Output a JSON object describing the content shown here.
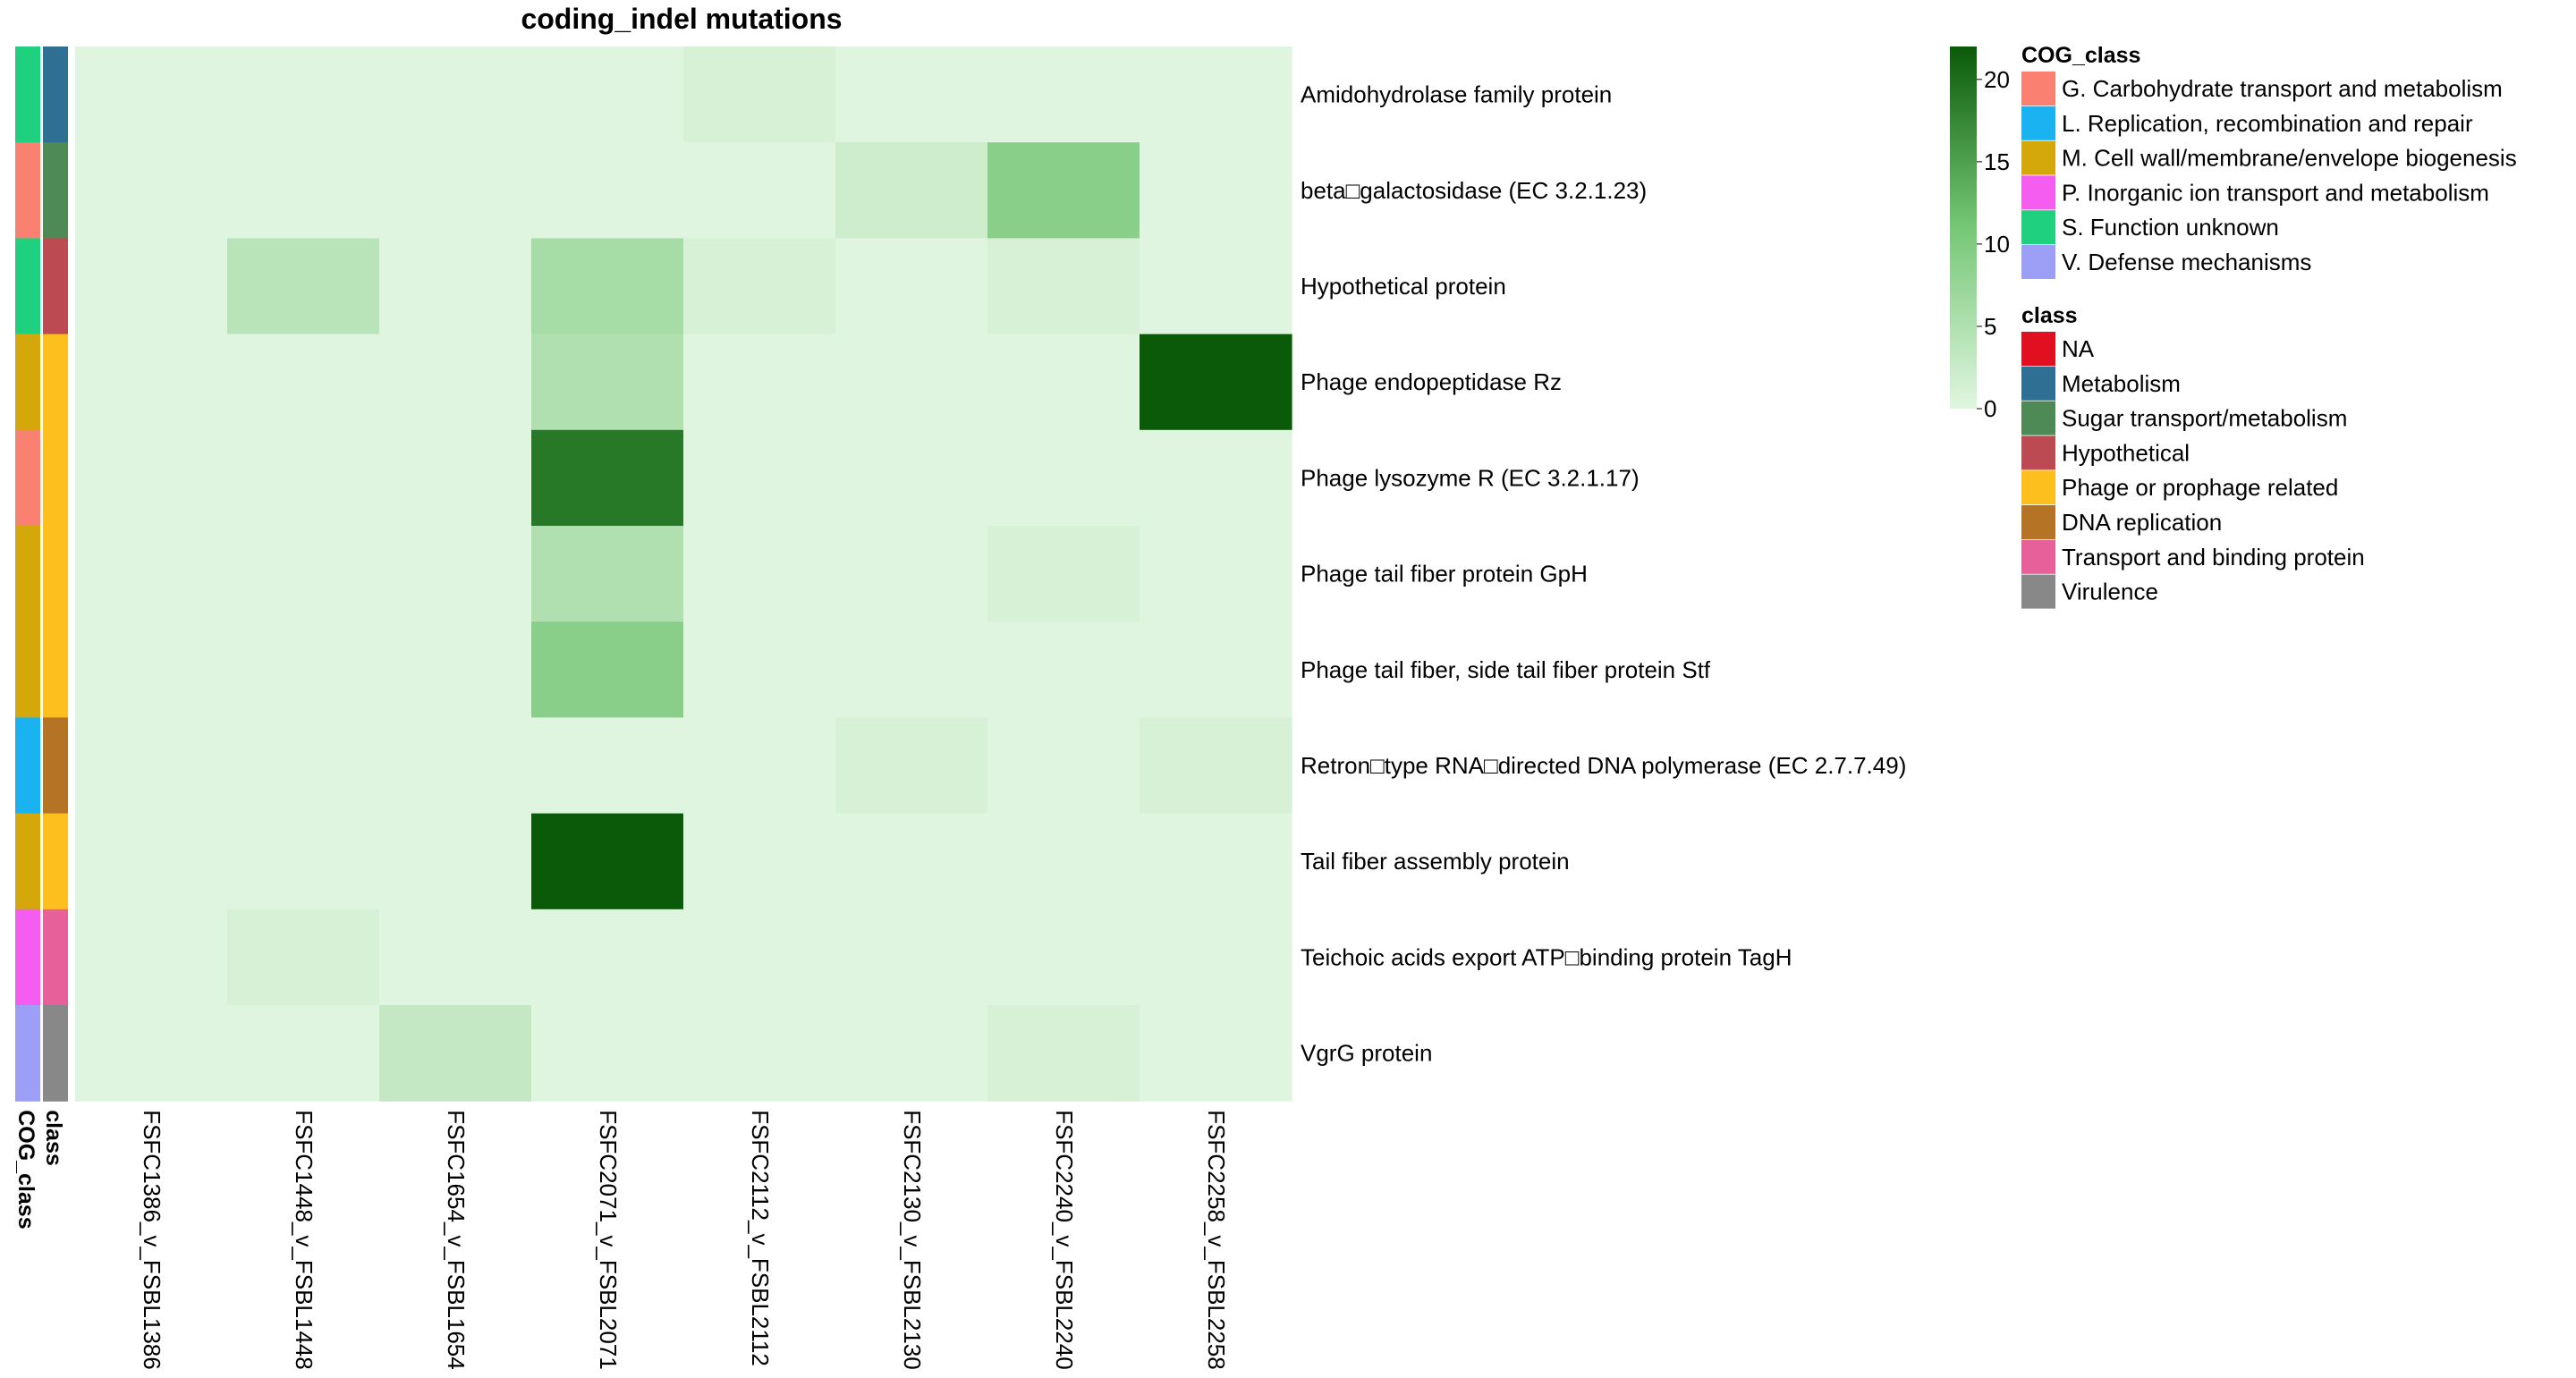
{
  "chart_data": {
    "type": "heatmap",
    "title": "coding_indel mutations",
    "columns": [
      "FSFC1386_v_FSBL1386",
      "FSFC1448_v_FSBL1448",
      "FSFC1654_v_FSBL1654",
      "FSFC2071_v_FSBL2071",
      "FSFC2112_v_FSBL2112",
      "FSFC2130_v_FSBL2130",
      "FSFC2240_v_FSBL2240",
      "FSFC2258_v_FSBL2258"
    ],
    "rows": [
      "Amidohydrolase family protein",
      "beta□galactosidase (EC 3.2.1.23)",
      "Hypothetical protein",
      "Phage endopeptidase Rz",
      "Phage lysozyme R (EC 3.2.1.17)",
      "Phage tail fiber protein GpH",
      "Phage tail fiber, side tail fiber protein Stf",
      "Retron□type RNA□directed DNA polymerase (EC 2.7.7.49)",
      "Tail fiber assembly protein",
      "Teichoic acids export ATP□binding protein TagH",
      "VgrG protein"
    ],
    "values": [
      [
        0,
        0,
        0,
        0,
        1,
        0,
        0,
        0
      ],
      [
        0,
        0,
        0,
        0,
        0,
        2,
        9,
        0
      ],
      [
        0,
        4,
        0,
        6,
        1,
        0,
        1,
        0
      ],
      [
        0,
        0,
        0,
        5,
        0,
        0,
        0,
        22
      ],
      [
        0,
        0,
        0,
        19,
        0,
        0,
        0,
        0
      ],
      [
        0,
        0,
        0,
        5,
        0,
        0,
        1,
        0
      ],
      [
        0,
        0,
        0,
        9,
        0,
        0,
        0,
        0
      ],
      [
        0,
        0,
        0,
        0,
        0,
        1,
        0,
        1
      ],
      [
        0,
        0,
        0,
        22,
        0,
        0,
        0,
        0
      ],
      [
        0,
        1,
        0,
        0,
        0,
        0,
        0,
        0
      ],
      [
        0,
        0,
        3,
        0,
        0,
        0,
        1,
        0
      ]
    ],
    "row_annotations": {
      "COG_class": [
        "S",
        "G",
        "S",
        "M",
        "G",
        "M",
        "M",
        "L",
        "M",
        "P",
        "V"
      ],
      "class": [
        "Metabolism",
        "Sugar transport/metabolism",
        "Hypothetical",
        "Phage or prophage related",
        "Phage or prophage related",
        "Phage or prophage related",
        "Phage or prophage related",
        "DNA replication",
        "Phage or prophage related",
        "Transport and binding protein",
        "Virulence"
      ]
    },
    "annotation_labels": [
      "COG_class",
      "class"
    ],
    "color_scale": {
      "min": 0,
      "max": 22,
      "low_color": "#e0f5e0",
      "mid_color": "#76c776",
      "high_color": "#0a5a0a",
      "ticks": [
        0,
        5,
        10,
        15,
        20
      ]
    },
    "legends": {
      "cog_title": "COG_class",
      "cog_items": [
        {
          "key": "G",
          "label": "G. Carbohydrate transport and metabolism",
          "color": "#fa8072"
        },
        {
          "key": "L",
          "label": "L. Replication, recombination and repair",
          "color": "#1ab2f0"
        },
        {
          "key": "M",
          "label": "M. Cell wall/membrane/envelope biogenesis",
          "color": "#d4a80a"
        },
        {
          "key": "P",
          "label": "P. Inorganic ion transport and metabolism",
          "color": "#f55cf0"
        },
        {
          "key": "S",
          "label": "S. Function unknown",
          "color": "#1fd07e"
        },
        {
          "key": "V",
          "label": "V. Defense mechanisms",
          "color": "#9d9ef5"
        }
      ],
      "class_title": "class",
      "class_items": [
        {
          "label": "NA",
          "color": "#e01020"
        },
        {
          "label": "Metabolism",
          "color": "#2f6f94"
        },
        {
          "label": "Sugar transport/metabolism",
          "color": "#4e8a55"
        },
        {
          "label": "Hypothetical",
          "color": "#bb4a52"
        },
        {
          "label": "Phage or prophage related",
          "color": "#fdbf1d"
        },
        {
          "label": "DNA replication",
          "color": "#b57425"
        },
        {
          "label": "Transport and binding protein",
          "color": "#e86099"
        },
        {
          "label": "Virulence",
          "color": "#888888"
        }
      ]
    }
  }
}
